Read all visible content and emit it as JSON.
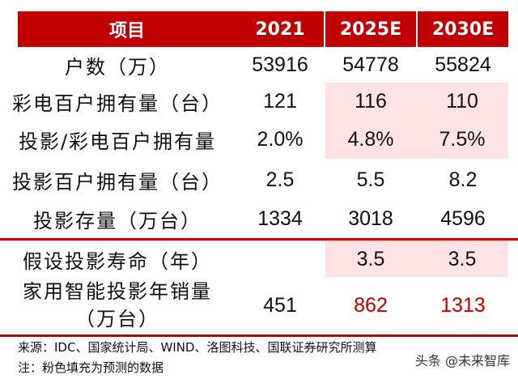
{
  "header": {
    "item": "项目",
    "c1": "2021",
    "c2": "2025E",
    "c3": "2030E"
  },
  "rows": [
    {
      "label": "户数（万）",
      "v1": "53916",
      "v2": "54778",
      "v3": "55824"
    },
    {
      "label": "彩电百户拥有量（台）",
      "v1": "121",
      "v2": "116",
      "v3": "110"
    },
    {
      "label": "投影/彩电百户拥有量",
      "v1": "2.0%",
      "v2": "4.8%",
      "v3": "7.5%"
    },
    {
      "label": "投影百户拥有量（台）",
      "v1": "2.5",
      "v2": "5.5",
      "v3": "8.2"
    },
    {
      "label": "投影存量（万台）",
      "v1": "1334",
      "v2": "3018",
      "v3": "4596"
    },
    {
      "label": "假设投影寿命（年）",
      "v1": "",
      "v2": "3.5",
      "v3": "3.5"
    },
    {
      "label_line1": "家用智能投影年销量",
      "label_line2": "（万台）",
      "v1": "451",
      "v2": "862",
      "v3": "1313"
    }
  ],
  "notes": {
    "source": "来源：IDC、国家统计局、WIND、洛图科技、国联证券研究所测算",
    "note": "注：粉色填充为预测的数据"
  },
  "watermark": "头条 @未来智库",
  "colors": {
    "header_bg": "#c00000",
    "forecast_fill": "#fde3e3",
    "highlight_text": "#c00000"
  }
}
